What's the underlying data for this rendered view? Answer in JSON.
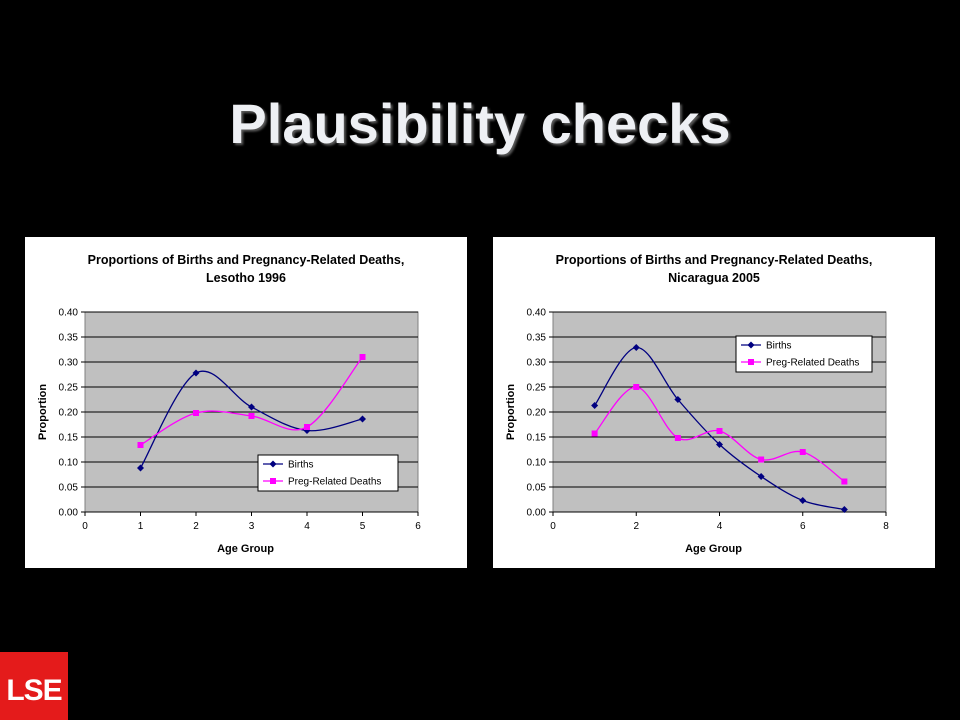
{
  "slide": {
    "title": "Plausibility checks"
  },
  "logo": {
    "text": "LSE",
    "color": "#e41b1b"
  },
  "colors": {
    "background": "#000000",
    "plot_area": "#c0c0c0",
    "births": "#000080",
    "deaths": "#ff00ff"
  },
  "chart_data": [
    {
      "type": "line",
      "title_lines": [
        "Proportions of Births and Pregnancy-Related Deaths,",
        "Lesotho 1996"
      ],
      "xlabel": "Age Group",
      "ylabel": "Proportion",
      "xlim": [
        0,
        6
      ],
      "xticks": [
        0,
        1,
        2,
        3,
        4,
        5,
        6
      ],
      "ylim": [
        0,
        0.4
      ],
      "yticks": [
        "0.00",
        "0.05",
        "0.10",
        "0.15",
        "0.20",
        "0.25",
        "0.30",
        "0.35",
        "0.40"
      ],
      "grid": true,
      "smooth": true,
      "legend_position": "bottom-right",
      "series": [
        {
          "name": "Births",
          "marker": "diamond",
          "x": [
            1,
            2,
            3,
            4,
            5
          ],
          "values": [
            0.088,
            0.278,
            0.21,
            0.163,
            0.186
          ]
        },
        {
          "name": "Preg-Related Deaths",
          "marker": "square",
          "x": [
            1,
            2,
            3,
            4,
            5
          ],
          "values": [
            0.134,
            0.198,
            0.192,
            0.17,
            0.31
          ]
        }
      ]
    },
    {
      "type": "line",
      "title_lines": [
        "Proportions of Births and Pregnancy-Related Deaths,",
        "Nicaragua 2005"
      ],
      "xlabel": "Age Group",
      "ylabel": "Proportion",
      "xlim": [
        0,
        8
      ],
      "xticks": [
        0,
        2,
        4,
        6,
        8
      ],
      "ylim": [
        0,
        0.4
      ],
      "yticks": [
        "0.00",
        "0.05",
        "0.10",
        "0.15",
        "0.20",
        "0.25",
        "0.30",
        "0.35",
        "0.40"
      ],
      "grid": true,
      "smooth": true,
      "legend_position": "top-right",
      "series": [
        {
          "name": "Births",
          "marker": "diamond",
          "x": [
            1,
            2,
            3,
            4,
            5,
            6,
            7
          ],
          "values": [
            0.213,
            0.329,
            0.225,
            0.135,
            0.071,
            0.023,
            0.005
          ]
        },
        {
          "name": "Preg-Related Deaths",
          "marker": "square",
          "x": [
            1,
            2,
            3,
            4,
            5,
            6,
            7
          ],
          "values": [
            0.157,
            0.25,
            0.148,
            0.162,
            0.105,
            0.12,
            0.061
          ]
        }
      ]
    }
  ]
}
